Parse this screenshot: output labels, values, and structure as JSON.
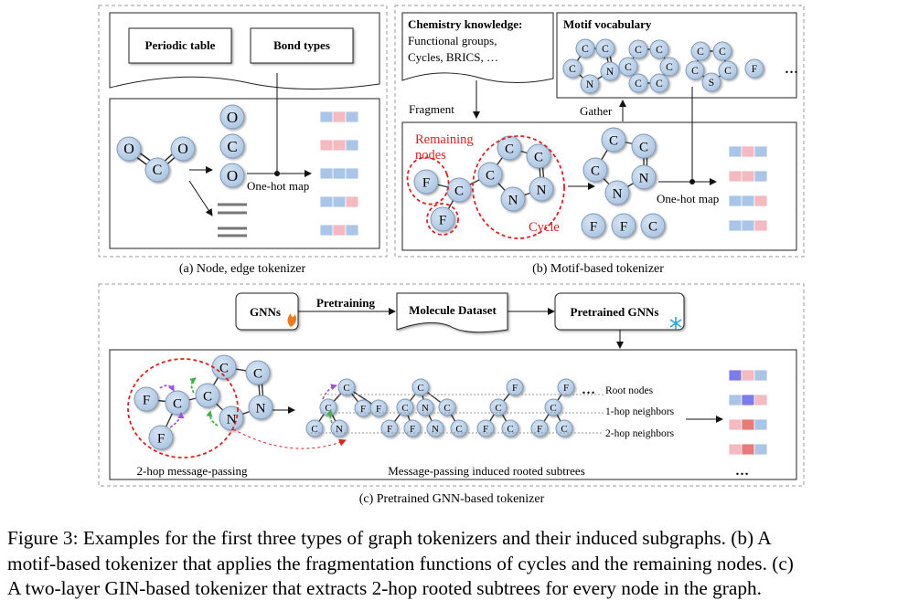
{
  "panel_a": {
    "periodic_table": "Periodic table",
    "bond_types": "Bond types",
    "one_hot_map": "One-hot map",
    "caption": "(a) Node, edge tokenizer",
    "atoms_molecule": [
      "O",
      "O",
      "C"
    ],
    "atoms_column": [
      "O",
      "C",
      "O"
    ]
  },
  "panel_b": {
    "chem_title": "Chemistry knowledge:",
    "chem_line1": "Functional groups,",
    "chem_line2": "Cycles, BRICS, …",
    "motif_title": "Motif vocabulary",
    "ellipsis": "…",
    "fragment": "Fragment",
    "gather": "Gather",
    "remaining_nodes_1": "Remaining",
    "remaining_nodes_2": "nodes",
    "cycle": "Cycle",
    "one_hot_map": "One-hot map",
    "caption": "(b) Motif-based tokenizer",
    "motif1_atoms": [
      "C",
      "C",
      "C",
      "N",
      "N"
    ],
    "motif2_atoms": [
      "C",
      "C",
      "C",
      "C",
      "C",
      "C"
    ],
    "motif3_atoms": [
      "C",
      "C",
      "C",
      "S",
      "C"
    ],
    "motif4_atom": "F",
    "input_atoms": [
      "F",
      "C",
      "F",
      "C",
      "C",
      "C",
      "N",
      "N"
    ],
    "cycle_atoms": [
      "C",
      "C",
      "C",
      "N",
      "N"
    ],
    "singles": [
      "F",
      "F",
      "C"
    ]
  },
  "panel_c": {
    "gnns": "GNNs",
    "pretraining": "Pretraining",
    "molecule_dataset": "Molecule Dataset",
    "pretrained_gnns": "Pretrained GNNs",
    "two_hop": "2-hop message-passing",
    "induced": "Message-passing induced rooted subtrees",
    "root_nodes": "Root nodes",
    "one_hop": "1-hop neighbors",
    "two_hop_neighbors": "2-hop neighbors",
    "ellipsis_top": "…",
    "ellipsis_bottom": "…",
    "caption": "(c) Pretrained GNN-based tokenizer",
    "graph_atoms": [
      "F",
      "C",
      "F",
      "C",
      "C",
      "C",
      "N",
      "N"
    ],
    "subtree1": [
      "C",
      "C",
      "F",
      "F",
      "C",
      "N"
    ],
    "subtree2": [
      "C",
      "C",
      "N",
      "C",
      "F",
      "F",
      "N",
      "C"
    ],
    "subtree3": [
      "F",
      "C",
      "F",
      "C"
    ],
    "subtree4": [
      "F",
      "C",
      "F",
      "C"
    ]
  },
  "figure_caption": {
    "line1": "Figure 3: Examples for the first three types of graph tokenizers and their induced subgraphs. (b) A",
    "line2": "motif-based tokenizer that applies the fragmentation functions of cycles and the remaining nodes. (c)",
    "line3": "A two-layer GIN-based tokenizer that extracts 2-hop rooted subtrees for every node in the graph."
  },
  "colors": {
    "node_fill": "#b9cfe6",
    "node_stroke": "#7f9ab8",
    "token_blue": "#a9c6e8",
    "token_pink": "#f5b9c2",
    "token_red": "#e97a7a",
    "token_purple": "#7b7bea",
    "dashed_red": "#e02020",
    "green_arrow": "#3cb43c",
    "purple_arrow": "#a050e0"
  }
}
